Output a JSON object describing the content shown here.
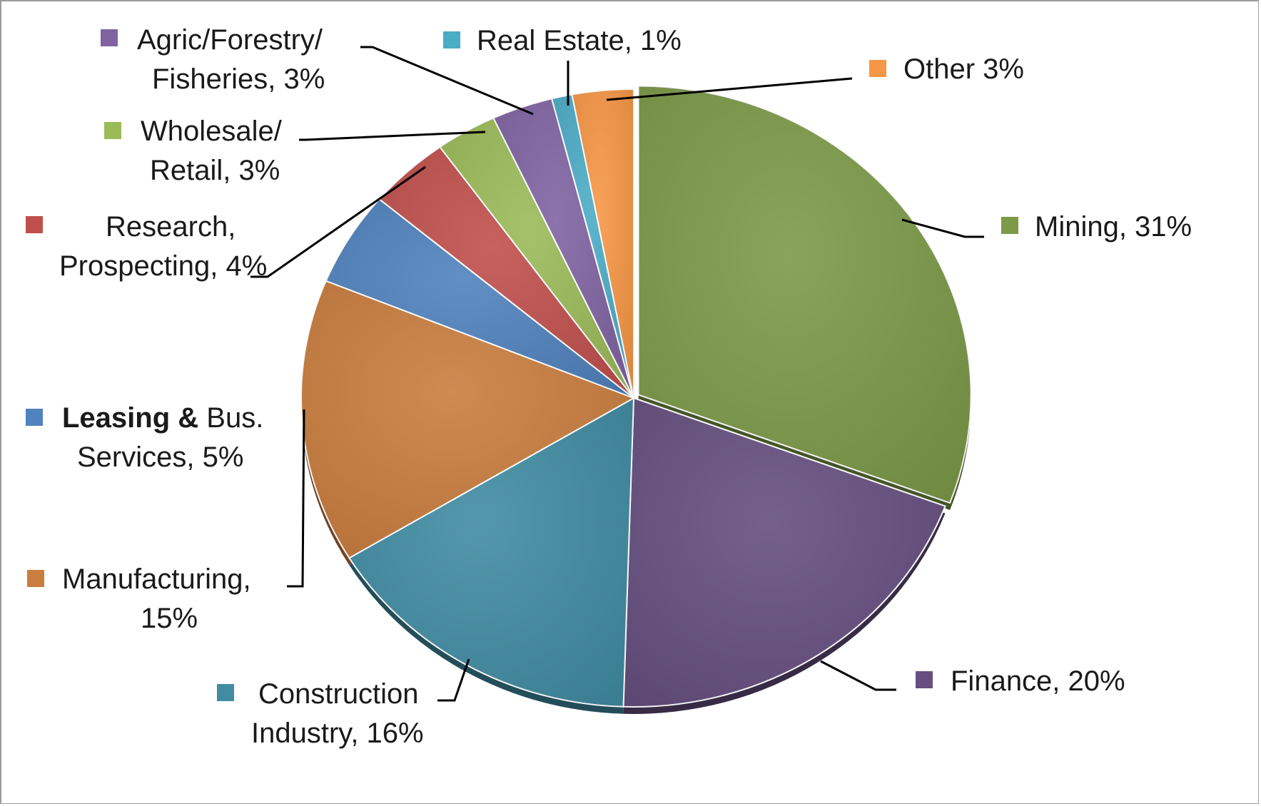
{
  "chart_data": {
    "type": "pie",
    "title": "",
    "slices": [
      {
        "key": "mining",
        "label": "Mining, 31%",
        "value": 31,
        "color": "#7c9a48"
      },
      {
        "key": "finance",
        "label": "Finance, 20%",
        "value": 20,
        "color": "#664f80"
      },
      {
        "key": "construction",
        "label": "Construction Industry, 16%",
        "value": 16,
        "color": "#418ca3"
      },
      {
        "key": "manufacturing",
        "label": "Manufacturing, 15%",
        "value": 15,
        "color": "#c97d3e"
      },
      {
        "key": "leasing",
        "label": "Leasing & Bus. Services, 5%",
        "value": 5,
        "color": "#5082bd"
      },
      {
        "key": "research",
        "label": "Research, Prospecting, 4%",
        "value": 4,
        "color": "#c0504d"
      },
      {
        "key": "wholesale",
        "label": "Wholesale/ Retail, 3%",
        "value": 3,
        "color": "#9bbb59"
      },
      {
        "key": "agric",
        "label": "Agric/Forestry/ Fisheries, 3%",
        "value": 3,
        "color": "#8064a2"
      },
      {
        "key": "realestate",
        "label": "Real Estate, 1%",
        "value": 1,
        "color": "#4bacc6"
      },
      {
        "key": "other",
        "label": "Other 3%",
        "value": 3,
        "color": "#f79646"
      }
    ],
    "start_angle_deg": 0,
    "direction": "clockwise",
    "label_position": "outside-with-leader-lines",
    "legend": "none"
  },
  "labels": {
    "mining": [
      "Mining, 31%"
    ],
    "finance": [
      "Finance, 20%"
    ],
    "construction": [
      "Construction",
      "Industry, 16%"
    ],
    "manufacturing": [
      "Manufacturing,",
      "15%"
    ],
    "leasing_bold": "Leasing &",
    "leasing_rest": " Bus.",
    "leasing_line2": "Services, 5%",
    "research": [
      "Research,",
      "Prospecting, 4%"
    ],
    "wholesale": [
      "Wholesale/",
      "Retail, 3%"
    ],
    "agric": [
      "Agric/Forestry/",
      "Fisheries, 3%"
    ],
    "realestate": [
      "Real Estate, 1%"
    ],
    "other": [
      "Other 3%"
    ]
  },
  "colors": {
    "background": "#ffffff",
    "frame": "#9a9a9a",
    "leader": "#000000",
    "text": "#1a1a1a"
  }
}
